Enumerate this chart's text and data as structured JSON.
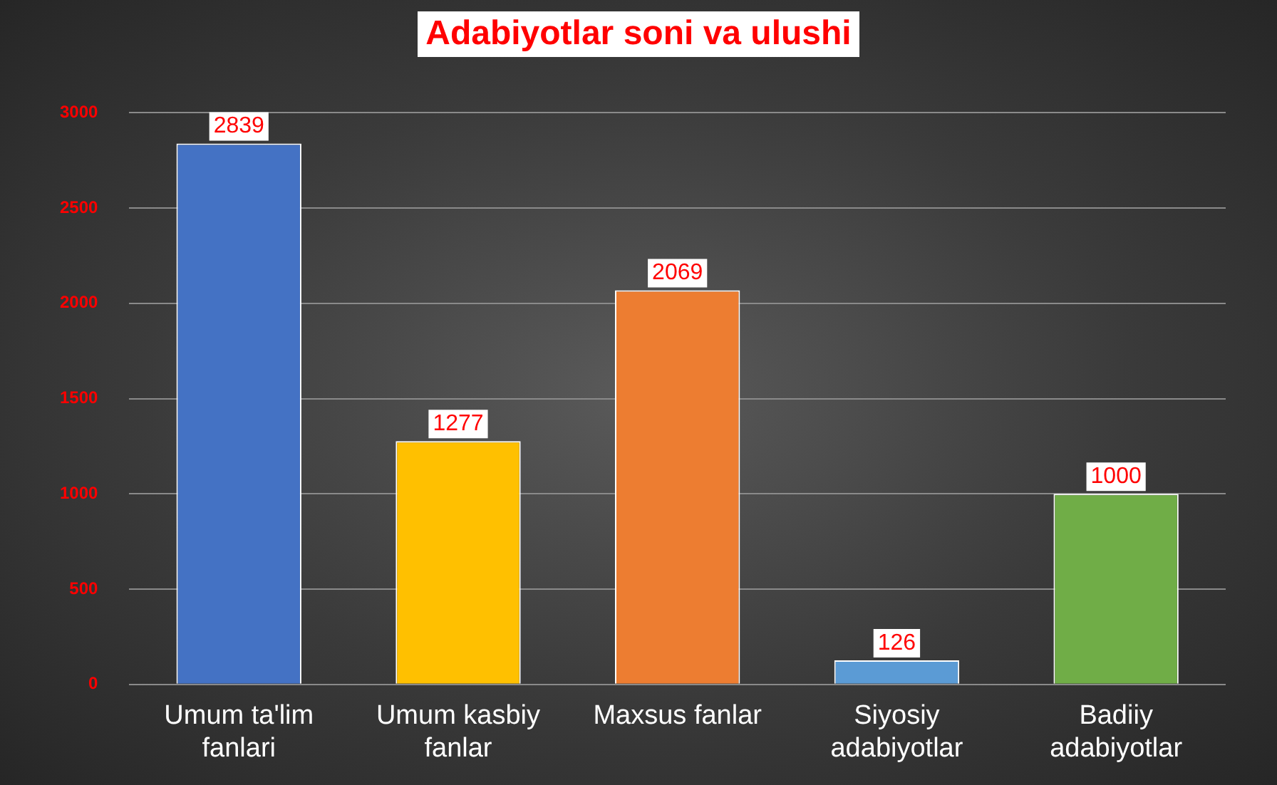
{
  "chart_data": {
    "type": "bar",
    "title": "Adabiyotlar soni va ulushi",
    "categories": [
      "Umum ta'lim fanlari",
      "Umum kasbiy fanlar",
      "Maxsus fanlar",
      "Siyosiy adabiyotlar",
      "Badiiy adabiyotlar"
    ],
    "values": [
      2839,
      1277,
      2069,
      126,
      1000
    ],
    "colors": [
      "#4472c4",
      "#ffc000",
      "#ed7d31",
      "#5b9bd5",
      "#70ad47"
    ],
    "ylim": [
      0,
      3000
    ],
    "yticks": [
      0,
      500,
      1000,
      1500,
      2000,
      2500,
      3000
    ],
    "grid": "y",
    "data_labels": true,
    "legend": false
  }
}
